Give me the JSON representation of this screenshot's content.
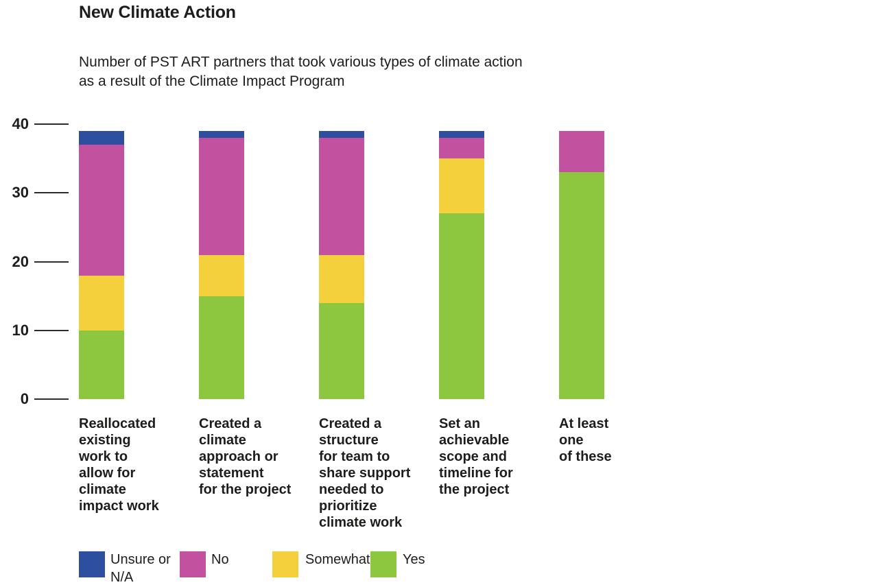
{
  "chart": {
    "title": "New Climate Action",
    "subtitle": "Number of PST ART partners that took various types of climate action\nas a result of the Climate Impact Program"
  },
  "chart_data": {
    "type": "bar",
    "stacked": true,
    "title": "New Climate Action",
    "subtitle": "Number of PST ART partners that took various types of climate action as a result of the Climate Impact Program",
    "categories": [
      "Reallocated existing work to allow for climate impact work",
      "Created a climate approach or statement for the project",
      "Created a structure for team to share support needed to prioritize climate work",
      "Set an achievable scope and timeline for the project",
      "At least one of these"
    ],
    "category_label_lines": [
      "Reallocated\nexisting\nwork to\nallow for\nclimate\nimpact work",
      "Created a\nclimate\napproach or\nstatement\nfor the project",
      "Created a\nstructure\nfor team to\nshare support\nneeded to\nprioritize\nclimate work",
      "Set an\nachievable\nscope and\ntimeline for\nthe project",
      "At least\none\nof these"
    ],
    "series": [
      {
        "name": "Yes",
        "color": "#8dc63f",
        "values": [
          10,
          15,
          14,
          27,
          33
        ]
      },
      {
        "name": "Somewhat",
        "color": "#f4d03c",
        "values": [
          8,
          6,
          7,
          8,
          0
        ]
      },
      {
        "name": "No",
        "color": "#c2529f",
        "values": [
          19,
          17,
          17,
          3,
          6
        ]
      },
      {
        "name": "Unsure or N/A",
        "color": "#2e4f9f",
        "values": [
          2,
          1,
          1,
          1,
          0
        ]
      }
    ],
    "totals": [
      39,
      39,
      39,
      39,
      39
    ],
    "xlabel": "",
    "ylabel": "",
    "ylim": [
      0,
      40
    ],
    "yticks": [
      0,
      10,
      20,
      30,
      40
    ],
    "grid": false,
    "legend_position": "bottom",
    "legend": [
      {
        "label": "Unsure or\nN/A",
        "color": "#2e4f9f"
      },
      {
        "label": "No",
        "color": "#c2529f"
      },
      {
        "label": "Somewhat",
        "color": "#f4d03c"
      },
      {
        "label": "Yes",
        "color": "#8dc63f"
      }
    ]
  }
}
